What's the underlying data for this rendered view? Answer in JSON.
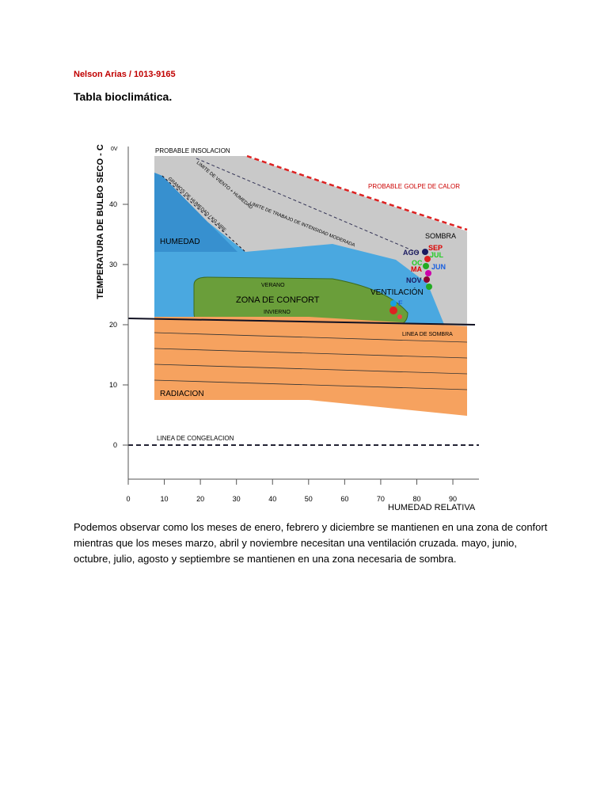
{
  "header": {
    "author": "Nelson Arias / 1013-9165",
    "title": "Tabla bioclimática."
  },
  "figure": {
    "y_axis_label": "TEMPERATURA DE BULBO SECO - C",
    "x_axis_label": "HUMEDAD RELATIVA",
    "y_top_label": "0V",
    "x_ticks": [
      0,
      10,
      20,
      30,
      40,
      50,
      60,
      70,
      80,
      90
    ],
    "y_ticks": [
      0,
      10,
      20,
      30,
      40
    ],
    "zones": {
      "insolacion": "PROBABLE INSOLACION",
      "golpe": "PROBABLE GOLPE DE CALOR",
      "sombra": "SOMBRA",
      "humedad": "HUMEDAD",
      "verano": "VERANO",
      "confort": "ZONA DE CONFORT",
      "invierno": "INVIERNO",
      "ventilacion": "VENTILACIÓN",
      "linea_sombra": "LINEA DE SOMBRA",
      "radiacion": "RADIACION",
      "congelacion": "LINEA DE CONGELACION",
      "viento": "LIMITE DE VIENTO + HUMEDAD",
      "gramos": "GRAMOS DE HUMEDAD / KG AIRE",
      "trabajo": "LIMITE DE TRABAJO DE INTENSIDAD MODERADA"
    },
    "months": {
      "ago": "AGO",
      "sep": "SEP",
      "jul": "JUL",
      "oct": "OC",
      "may": "MA",
      "jun": "JUN",
      "nov": "NOV",
      "f": "F"
    }
  },
  "body": {
    "paragraph": "Podemos observar como los meses de enero, febrero y diciembre se mantienen en una zona de confort mientras que los meses marzo, abril y noviembre necesitan una ventilación cruzada. mayo, junio, octubre, julio, agosto y septiembre se mantienen en una zona necesaria de sombra."
  }
}
